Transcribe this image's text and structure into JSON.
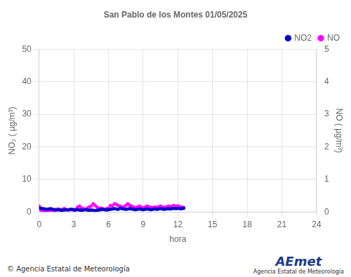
{
  "chart_data": {
    "type": "scatter",
    "title": "San Pablo de los Montes 01/05/2025",
    "xlabel": "hora",
    "ylabel": "NO₂ ( µg/m³)",
    "y2label": "NO ( µg/m³)",
    "xlim": [
      0,
      24
    ],
    "xticks": [
      0,
      3,
      6,
      9,
      12,
      15,
      18,
      21,
      24
    ],
    "ylim": [
      0,
      50
    ],
    "yticks": [
      0,
      10,
      20,
      30,
      40,
      50
    ],
    "y2lim": [
      0,
      5
    ],
    "y2ticks": [
      0,
      1,
      2,
      3,
      4,
      5
    ],
    "grid": true,
    "legend": "upper right",
    "annotations": [
      "© Agencia Estatal de Meteorología",
      "AEmet",
      "Agencia Estatal de Meteorología"
    ],
    "series": [
      {
        "name": "NO2",
        "color": "#0000cc",
        "marker": "circle",
        "axis": "y",
        "x": [
          0.0,
          0.17,
          0.33,
          0.5,
          0.67,
          0.83,
          1.0,
          1.17,
          1.33,
          1.5,
          1.67,
          1.83,
          2.0,
          2.17,
          2.33,
          2.5,
          2.67,
          2.83,
          3.0,
          3.17,
          3.33,
          3.5,
          3.67,
          3.83,
          4.0,
          4.17,
          4.33,
          4.5,
          4.67,
          4.83,
          5.0,
          5.17,
          5.33,
          5.5,
          5.67,
          5.83,
          6.0,
          6.17,
          6.33,
          6.5,
          6.67,
          6.83,
          7.0,
          7.17,
          7.33,
          7.5,
          7.67,
          7.83,
          8.0,
          8.17,
          8.33,
          8.5,
          8.67,
          8.83,
          9.0,
          9.17,
          9.33,
          9.5,
          9.67,
          9.83,
          10.0,
          10.17,
          10.33,
          10.5,
          10.67,
          10.83,
          11.0,
          11.17,
          11.33,
          11.5,
          11.67,
          11.83,
          12.0,
          12.17,
          12.33,
          12.5
        ],
        "values": [
          1.2,
          1.1,
          1.0,
          0.9,
          0.8,
          0.9,
          1.0,
          0.8,
          0.7,
          0.6,
          0.7,
          0.6,
          0.5,
          0.6,
          0.7,
          0.6,
          0.7,
          0.8,
          0.7,
          0.6,
          0.7,
          0.6,
          0.5,
          0.6,
          0.7,
          0.6,
          0.5,
          0.6,
          0.5,
          0.4,
          0.5,
          0.6,
          0.7,
          0.8,
          0.7,
          0.6,
          0.7,
          0.8,
          0.9,
          1.0,
          0.9,
          0.8,
          1.1,
          1.0,
          0.9,
          0.8,
          0.9,
          1.0,
          0.9,
          0.8,
          0.7,
          0.8,
          0.9,
          0.8,
          0.7,
          0.8,
          0.9,
          0.8,
          0.7,
          0.8,
          0.9,
          0.8,
          0.9,
          1.0,
          0.9,
          0.8,
          0.9,
          1.0,
          0.9,
          1.0,
          1.1,
          1.0,
          1.1,
          1.0,
          1.0,
          1.1
        ]
      },
      {
        "name": "NO",
        "color": "#ff00ff",
        "marker": "circle",
        "axis": "y2",
        "x": [
          0.0,
          0.17,
          0.33,
          0.5,
          0.67,
          0.83,
          1.0,
          1.17,
          1.33,
          1.5,
          1.67,
          1.83,
          2.0,
          2.17,
          2.33,
          2.5,
          2.67,
          2.83,
          3.0,
          3.17,
          3.33,
          3.5,
          3.67,
          3.83,
          4.0,
          4.17,
          4.33,
          4.5,
          4.67,
          4.83,
          5.0,
          5.17,
          5.33,
          5.5,
          5.67,
          5.83,
          6.0,
          6.17,
          6.33,
          6.5,
          6.67,
          6.83,
          7.0,
          7.17,
          7.33,
          7.5,
          7.67,
          7.83,
          8.0,
          8.17,
          8.33,
          8.5,
          8.67,
          8.83,
          9.0,
          9.17,
          9.33,
          9.5,
          9.67,
          9.83,
          10.0,
          10.17,
          10.33,
          10.5,
          10.67,
          10.83,
          11.0,
          11.17,
          11.33,
          11.5,
          11.67,
          11.83,
          12.0,
          12.17,
          12.33,
          12.5
        ],
        "values": [
          0.18,
          0.05,
          0.03,
          0.02,
          0.03,
          0.04,
          0.05,
          0.04,
          0.03,
          0.08,
          0.09,
          0.05,
          0.08,
          0.1,
          0.07,
          0.06,
          0.08,
          0.07,
          0.05,
          0.08,
          0.15,
          0.18,
          0.12,
          0.1,
          0.08,
          0.12,
          0.15,
          0.18,
          0.25,
          0.2,
          0.15,
          0.1,
          0.12,
          0.1,
          0.08,
          0.1,
          0.12,
          0.2,
          0.18,
          0.25,
          0.23,
          0.2,
          0.18,
          0.15,
          0.15,
          0.2,
          0.25,
          0.2,
          0.18,
          0.15,
          0.13,
          0.15,
          0.18,
          0.15,
          0.12,
          0.15,
          0.18,
          0.16,
          0.14,
          0.13,
          0.15,
          0.14,
          0.16,
          0.18,
          0.15,
          0.14,
          0.15,
          0.18,
          0.16,
          0.18,
          0.2,
          0.17,
          0.19,
          0.16,
          0.15,
          0.14
        ]
      }
    ]
  }
}
